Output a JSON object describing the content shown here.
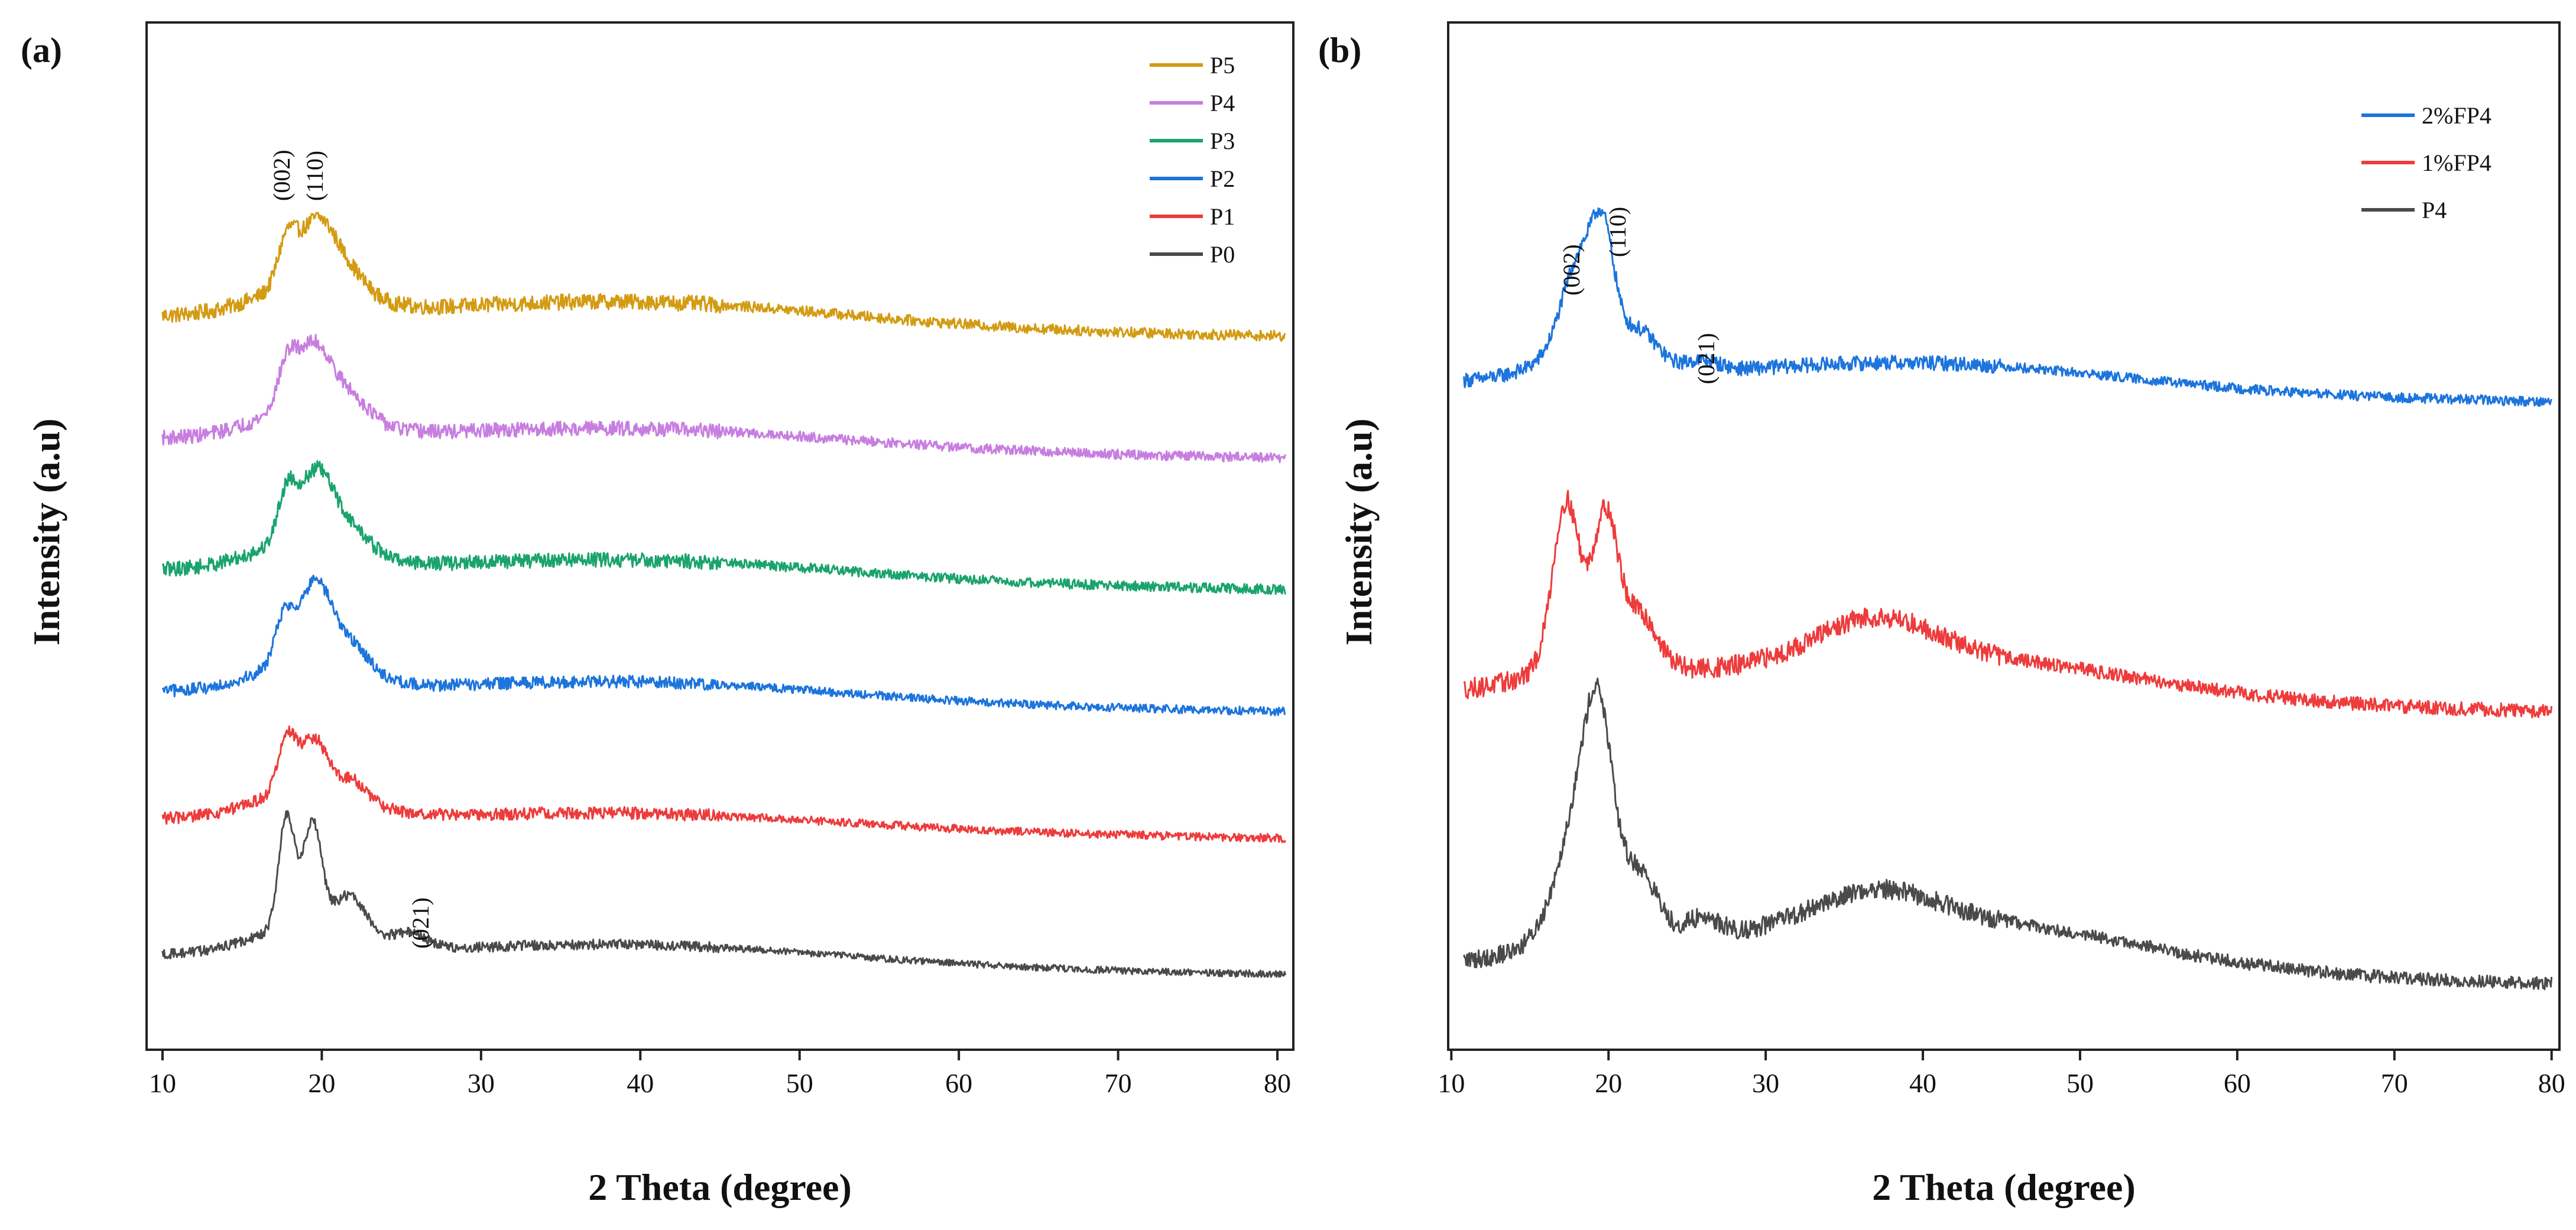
{
  "chart_data": [
    {
      "panel_label": "(a)",
      "type": "line",
      "xlabel": "2 Theta (degree)",
      "ylabel": "Intensity (a.u)",
      "xlim": [
        9,
        81
      ],
      "xticks": [
        10,
        20,
        30,
        40,
        50,
        60,
        70,
        80
      ],
      "y_units": "arbitrary (stacked, offset)",
      "legend_position": "top-right",
      "series": [
        {
          "name": "P5",
          "color": "#D39B12",
          "baseline": 0.73,
          "peaks": [
            {
              "x": 17.8,
              "h": 0.045,
              "w": 0.8
            },
            {
              "x": 19.7,
              "h": 0.07,
              "w": 1.6
            },
            {
              "x": 21.8,
              "h": 0.02,
              "w": 1.5
            }
          ],
          "noise": 0.014,
          "hump": 0.025
        },
        {
          "name": "P4",
          "color": "#C77EE0",
          "baseline": 0.6,
          "peaks": [
            {
              "x": 17.8,
              "h": 0.04,
              "w": 0.8
            },
            {
              "x": 19.5,
              "h": 0.07,
              "w": 1.6
            },
            {
              "x": 22,
              "h": 0.02,
              "w": 1.5
            }
          ],
          "noise": 0.013,
          "hump": 0.02
        },
        {
          "name": "P3",
          "color": "#1AA36E",
          "baseline": 0.46,
          "peaks": [
            {
              "x": 17.8,
              "h": 0.05,
              "w": 0.8
            },
            {
              "x": 19.7,
              "h": 0.075,
              "w": 1.5
            },
            {
              "x": 22,
              "h": 0.02,
              "w": 1.5
            }
          ],
          "noise": 0.013,
          "hump": 0.02
        },
        {
          "name": "P2",
          "color": "#1C74DD",
          "baseline": 0.33,
          "peaks": [
            {
              "x": 17.6,
              "h": 0.045,
              "w": 0.8
            },
            {
              "x": 19.6,
              "h": 0.085,
              "w": 1.5
            },
            {
              "x": 22,
              "h": 0.025,
              "w": 1.5
            }
          ],
          "noise": 0.011,
          "hump": 0.02
        },
        {
          "name": "P1",
          "color": "#EE3B3B",
          "baseline": 0.195,
          "peaks": [
            {
              "x": 17.8,
              "h": 0.055,
              "w": 0.8
            },
            {
              "x": 19.5,
              "h": 0.055,
              "w": 1.2
            },
            {
              "x": 22,
              "h": 0.02,
              "w": 1.3
            }
          ],
          "noise": 0.011,
          "hump": 0.015
        },
        {
          "name": "P0",
          "color": "#4A4A4A",
          "baseline": 0.05,
          "peaks": [
            {
              "x": 17.8,
              "h": 0.12,
              "w": 0.7
            },
            {
              "x": 19.4,
              "h": 0.11,
              "w": 0.8
            },
            {
              "x": 21.8,
              "h": 0.04,
              "w": 1.4
            },
            {
              "x": 25.5,
              "h": 0.015,
              "w": 1.5
            }
          ],
          "noise": 0.009,
          "hump": 0.02
        }
      ],
      "annotations": [
        "(002)",
        "(110)",
        "(021)"
      ]
    },
    {
      "panel_label": "(b)",
      "type": "line",
      "xlabel": "2 Theta (degree)",
      "ylabel": "Intensity (a.u)",
      "xlim": [
        9.8,
        80.5
      ],
      "xticks": [
        10,
        20,
        30,
        40,
        50,
        60,
        70,
        80
      ],
      "y_units": "arbitrary (stacked, offset)",
      "legend_position": "top-right",
      "series": [
        {
          "name": "2%FP4",
          "color": "#1C74DD",
          "baseline": 0.66,
          "peaks": [
            {
              "x": 18.2,
              "h": 0.1,
              "w": 1.6
            },
            {
              "x": 19.7,
              "h": 0.1,
              "w": 1.0
            },
            {
              "x": 22,
              "h": 0.03,
              "w": 1.5
            },
            {
              "x": 26,
              "h": 0.01,
              "w": 1.5
            }
          ],
          "noise": 0.013,
          "hump": 0.03
        },
        {
          "name": "1%FP4",
          "color": "#EE3B3B",
          "baseline": 0.33,
          "peaks": [
            {
              "x": 17.3,
              "h": 0.17,
              "w": 1.2
            },
            {
              "x": 19.8,
              "h": 0.15,
              "w": 1.1
            },
            {
              "x": 22,
              "h": 0.05,
              "w": 1.5
            },
            {
              "x": 37,
              "h": 0.04,
              "w": 5
            }
          ],
          "noise": 0.018,
          "hump": 0.05
        },
        {
          "name": "P4",
          "color": "#4A4A4A",
          "baseline": 0.04,
          "peaks": [
            {
              "x": 18.3,
              "h": 0.13,
              "w": 2.0
            },
            {
              "x": 19.4,
              "h": 0.15,
              "w": 1.2
            },
            {
              "x": 22,
              "h": 0.06,
              "w": 1.6
            },
            {
              "x": 26,
              "h": 0.02,
              "w": 1.5
            },
            {
              "x": 37,
              "h": 0.03,
              "w": 5
            }
          ],
          "noise": 0.017,
          "hump": 0.06
        }
      ],
      "annotations": [
        "(002)",
        "(110)",
        "(021)"
      ]
    }
  ]
}
